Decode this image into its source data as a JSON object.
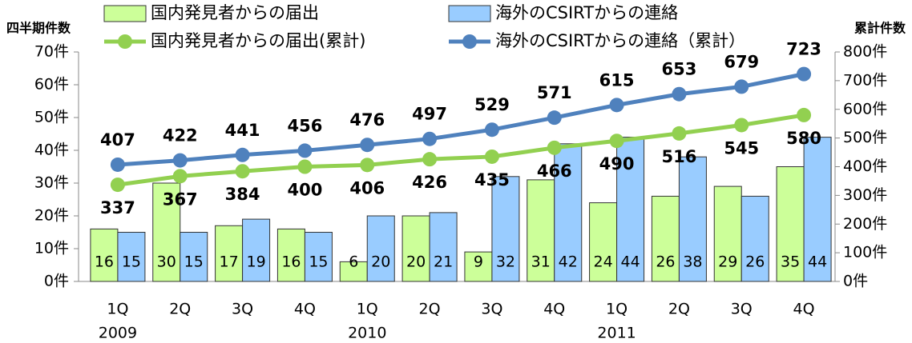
{
  "chart_data": {
    "type": "combo",
    "y_label": "四半期件数",
    "y2_label": "累計件数",
    "categories": [
      "1Q",
      "2Q",
      "3Q",
      "4Q",
      "1Q",
      "2Q",
      "3Q",
      "4Q",
      "1Q",
      "2Q",
      "3Q",
      "4Q"
    ],
    "category_groups": [
      "2009",
      "2010",
      "2011"
    ],
    "series": [
      {
        "name": "国内発見者からの届出",
        "type": "bar",
        "color": "#ccff99",
        "values": [
          16,
          30,
          17,
          16,
          6,
          20,
          9,
          31,
          24,
          26,
          29,
          35
        ]
      },
      {
        "name": "海外のCSIRTからの連絡",
        "type": "bar",
        "color": "#99ccff",
        "values": [
          15,
          15,
          19,
          15,
          20,
          21,
          32,
          42,
          44,
          38,
          26,
          44
        ]
      },
      {
        "name": "国内発見者からの届出(累計)",
        "type": "line",
        "axis": "y2",
        "color": "#92d050",
        "values": [
          337,
          367,
          384,
          400,
          406,
          426,
          435,
          466,
          490,
          516,
          545,
          580
        ]
      },
      {
        "name": "海外のCSIRTからの連絡（累計）",
        "type": "line",
        "axis": "y2",
        "color": "#4f81bd",
        "values": [
          407,
          422,
          441,
          456,
          476,
          497,
          529,
          571,
          615,
          653,
          679,
          723
        ]
      }
    ],
    "ylim": [
      0,
      70
    ],
    "yticks": [
      {
        "value": 0,
        "label": "0件"
      },
      {
        "value": 10,
        "label": "10件"
      },
      {
        "value": 20,
        "label": "20件"
      },
      {
        "value": 30,
        "label": "30件"
      },
      {
        "value": 40,
        "label": "40件"
      },
      {
        "value": 50,
        "label": "50件"
      },
      {
        "value": 60,
        "label": "60件"
      },
      {
        "value": 70,
        "label": "70件"
      }
    ],
    "y2lim": [
      0,
      800
    ],
    "y2ticks": [
      {
        "value": 0,
        "label": "0件"
      },
      {
        "value": 100,
        "label": "100件"
      },
      {
        "value": 200,
        "label": "200件"
      },
      {
        "value": 300,
        "label": "300件"
      },
      {
        "value": 400,
        "label": "400件"
      },
      {
        "value": 500,
        "label": "500件"
      },
      {
        "value": 600,
        "label": "600件"
      },
      {
        "value": 700,
        "label": "700件"
      },
      {
        "value": 800,
        "label": "800件"
      }
    ],
    "grid": false
  }
}
